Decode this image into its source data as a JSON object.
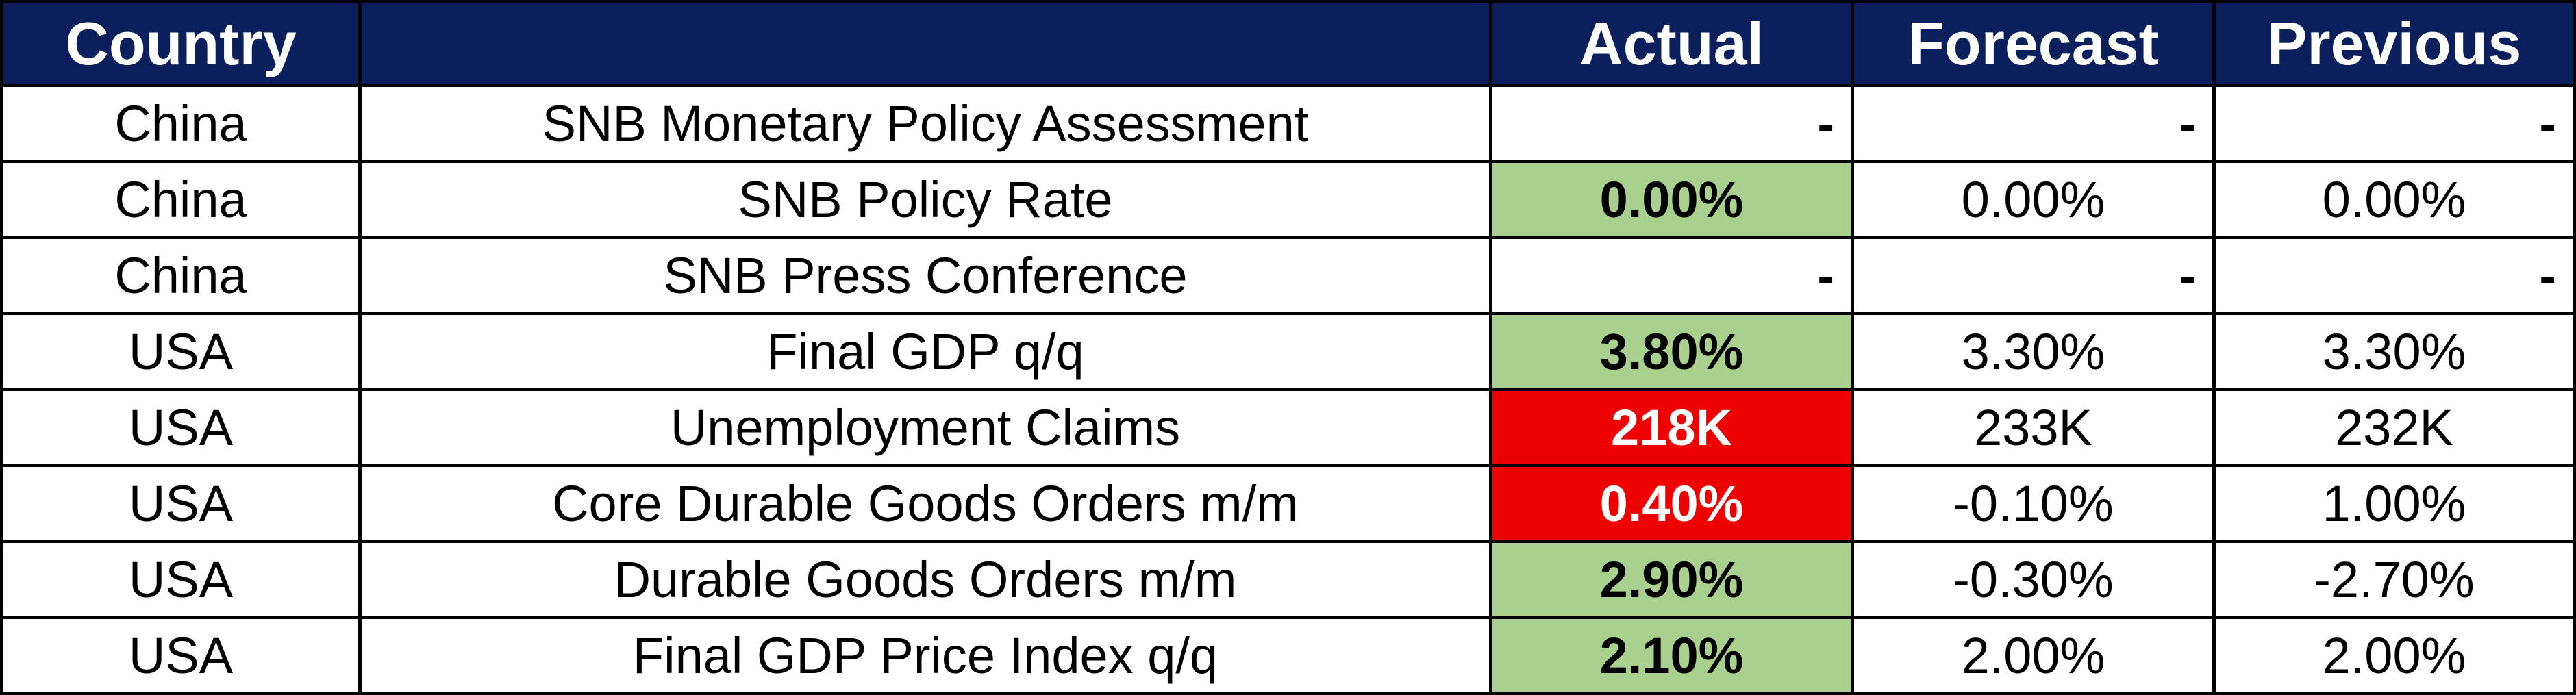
{
  "header": {
    "country": "Country",
    "actual": "Actual",
    "forecast": "Forecast",
    "previous": "Previous"
  },
  "rows": [
    {
      "country": "China",
      "event": "SNB Monetary Policy Assessment",
      "actual": "-",
      "forecast": "-",
      "previous": "-"
    },
    {
      "country": "China",
      "event": "SNB Policy Rate",
      "actual": "0.00%",
      "actual_color": "#a9d08e",
      "forecast": "0.00%",
      "previous": "0.00%"
    },
    {
      "country": "China",
      "event": "SNB Press Conference",
      "actual": "-",
      "forecast": "-",
      "previous": "-"
    },
    {
      "country": "USA",
      "event": "Final GDP q/q",
      "actual": "3.80%",
      "actual_color": "#a9d08e",
      "forecast": "3.30%",
      "previous": "3.30%"
    },
    {
      "country": "USA",
      "event": "Unemployment Claims",
      "actual": "218K",
      "actual_color": "#ee0000",
      "forecast": "233K",
      "previous": "232K"
    },
    {
      "country": "USA",
      "event": "Core Durable Goods Orders m/m",
      "actual": "0.40%",
      "actual_color": "#ee0000",
      "forecast": "-0.10%",
      "previous": "1.00%"
    },
    {
      "country": "USA",
      "event": "Durable Goods Orders m/m",
      "actual": "2.90%",
      "actual_color": "#a9d08e",
      "forecast": "-0.30%",
      "previous": "-2.70%"
    },
    {
      "country": "USA",
      "event": "Final GDP Price Index q/q",
      "actual": "2.10%",
      "actual_color": "#a9d08e",
      "forecast": "2.00%",
      "previous": "2.00%"
    }
  ]
}
